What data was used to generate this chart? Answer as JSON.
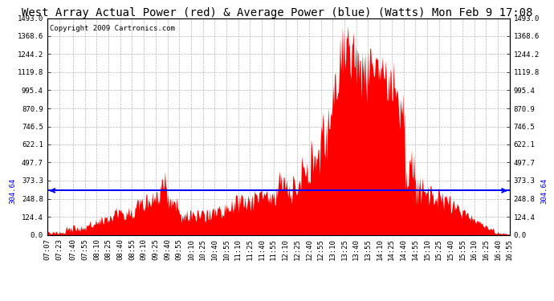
{
  "title": "West Array Actual Power (red) & Average Power (blue) (Watts) Mon Feb 9 17:08",
  "copyright": "Copyright 2009 Cartronics.com",
  "average_value": 304.64,
  "y_min": 0.0,
  "y_max": 1493.0,
  "y_ticks": [
    0.0,
    124.4,
    248.8,
    373.3,
    497.7,
    622.1,
    746.5,
    870.9,
    995.4,
    1119.8,
    1244.2,
    1368.6,
    1493.0
  ],
  "background_color": "#ffffff",
  "plot_bg_color": "#ffffff",
  "grid_color": "#b0b0b0",
  "bar_color": "#ff0000",
  "avg_line_color": "#0000ff",
  "title_fontsize": 10,
  "copyright_fontsize": 6.5,
  "tick_fontsize": 6.5,
  "avg_label_fontsize": 6.5,
  "x_tick_labels": [
    "07:07",
    "07:23",
    "07:40",
    "07:55",
    "08:10",
    "08:25",
    "08:40",
    "08:55",
    "09:10",
    "09:25",
    "09:40",
    "09:55",
    "10:10",
    "10:25",
    "10:40",
    "10:55",
    "11:10",
    "11:25",
    "11:40",
    "11:55",
    "12:10",
    "12:25",
    "12:40",
    "12:55",
    "13:10",
    "13:25",
    "13:40",
    "13:55",
    "14:10",
    "14:25",
    "14:40",
    "14:55",
    "15:10",
    "15:25",
    "15:40",
    "15:55",
    "16:10",
    "16:25",
    "16:40",
    "16:55"
  ]
}
